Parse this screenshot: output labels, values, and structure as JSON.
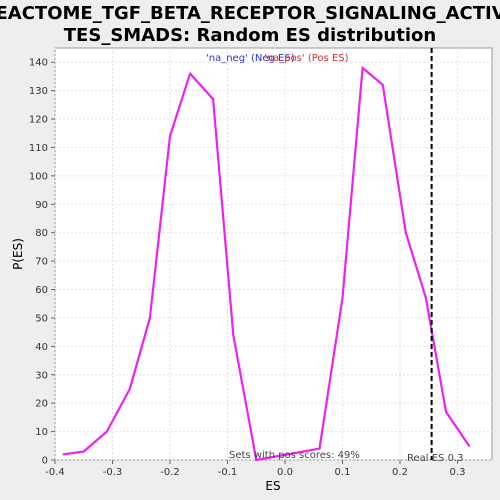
{
  "chart_data": {
    "type": "line",
    "title_lines": [
      "REACTOME_TGF_BETA_RECEPTOR_SIGNALING_ACTIVA",
      "TES_SMADS: Random ES distribution"
    ],
    "xlabel": "ES",
    "ylabel": "P(ES)",
    "xlim": [
      -0.4,
      0.36
    ],
    "ylim": [
      0,
      145
    ],
    "xticks": [
      -0.4,
      -0.3,
      -0.2,
      -0.1,
      0.0,
      0.1,
      0.2,
      0.3
    ],
    "xtick_labels": [
      "-0.4",
      "-0.3",
      "-0.2",
      "-0.1",
      "0.0",
      "0.1",
      "0.2",
      "0.3"
    ],
    "yticks": [
      0,
      10,
      20,
      30,
      40,
      50,
      60,
      70,
      80,
      90,
      100,
      110,
      120,
      130,
      140
    ],
    "ytick_labels": [
      "0",
      "10",
      "20",
      "30",
      "40",
      "50",
      "60",
      "70",
      "80",
      "90",
      "100",
      "110",
      "120",
      "130",
      "140"
    ],
    "grid": true,
    "series": [
      {
        "color": "#ee22ee",
        "x": [
          -0.385,
          -0.35,
          -0.31,
          -0.27,
          -0.235,
          -0.2,
          -0.165,
          -0.125,
          -0.09,
          -0.05,
          0.06,
          0.1,
          0.135,
          0.17,
          0.21,
          0.245,
          0.28,
          0.32
        ],
        "y": [
          2,
          3,
          10,
          25,
          50,
          114,
          136,
          127,
          44,
          0,
          4,
          57,
          138,
          132,
          80,
          57,
          17,
          5
        ]
      }
    ],
    "legend": [
      {
        "label": "'na_neg' (Neg ES)",
        "color": "#3333cc"
      },
      {
        "label": "'na_pos' (Pos ES)",
        "color": "#cc3333"
      }
    ],
    "real_es": 0.255,
    "real_es_label": "Real ES 0.3",
    "annotation": "Sets with pos scores: 49%"
  }
}
